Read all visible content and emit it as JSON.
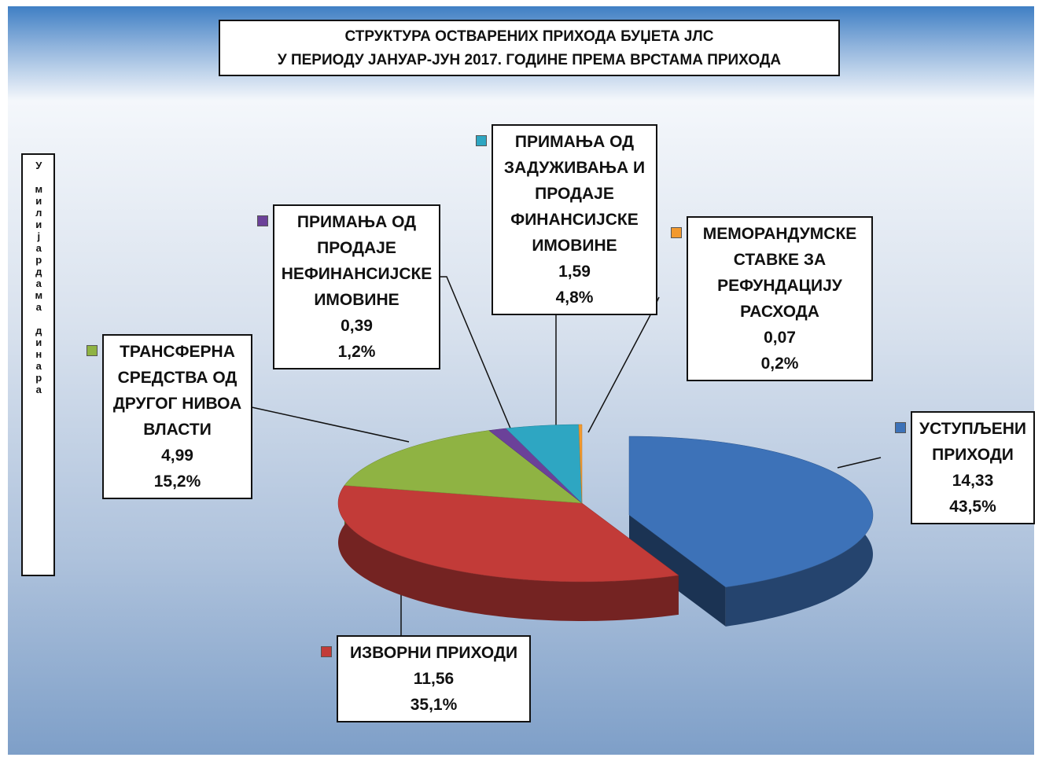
{
  "chart_data": {
    "type": "pie3d",
    "title": "СТРУКТУРА ОСТВАРЕНИХ ПРИХОДА БУЏЕТА ЈЛС",
    "subtitle": "У ПЕРИОДУ ЈАНУАР-ЈУН 2017. ГОДИНЕ ПРЕМА ВРСТАМА ПРИХОДА",
    "y_label": "У милијардама динара",
    "categories": [
      "УСТУПЉЕНИ ПРИХОДИ",
      "ИЗВОРНИ ПРИХОДИ",
      "ТРАНСФЕРНА СРЕДСТВА ОД ДРУГОГ НИВОА ВЛАСТИ",
      "ПРИМАЊА ОД ПРОДАЈЕ НЕФИНАНСИЈСКЕ ИМОВИНЕ",
      "ПРИМАЊА ОД ЗАДУЖИВАЊА И ПРОДАЈЕ ФИНАНСИЈСКЕ ИМОВИНЕ",
      "МЕМОРАНДУМСКЕ СТАВКЕ ЗА РЕФУНДАЦИЈУ РАСХОДА"
    ],
    "values": [
      14.33,
      11.56,
      4.99,
      0.39,
      1.59,
      0.07
    ],
    "value_labels": [
      "14,33",
      "11,56",
      "4,99",
      "0,39",
      "1,59",
      "0,07"
    ],
    "percentages": [
      43.5,
      35.1,
      15.2,
      1.2,
      4.8,
      0.2
    ],
    "percentage_labels": [
      "43,5%",
      "35,1%",
      "15,2%",
      "1,2%",
      "4,8%",
      "0,2%"
    ],
    "colors": [
      "#3d72b8",
      "#c23b38",
      "#8fb343",
      "#6b4199",
      "#2ea6c2",
      "#f2992e"
    ]
  }
}
